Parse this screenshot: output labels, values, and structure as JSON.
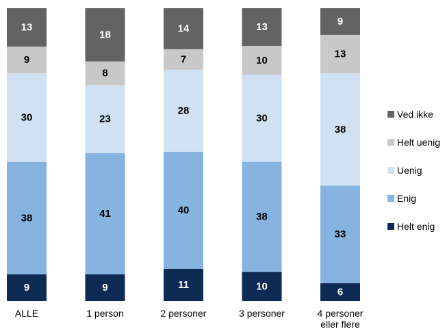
{
  "chart_data": {
    "type": "bar",
    "stacked": true,
    "orientation": "vertical",
    "percent_scale": 100,
    "categories": [
      "ALLE",
      "1 person",
      "2 personer",
      "3 personer",
      "4 personer\neller flere"
    ],
    "series": [
      {
        "name": "Helt enig",
        "color": "#0d2b55",
        "label_color": "#ffffff",
        "values": [
          9,
          9,
          11,
          10,
          6
        ]
      },
      {
        "name": "Enig",
        "color": "#86b3df",
        "label_color": "#000000",
        "values": [
          38,
          41,
          40,
          38,
          33
        ]
      },
      {
        "name": "Uenig",
        "color": "#cfe1f3",
        "label_color": "#000000",
        "values": [
          30,
          23,
          28,
          30,
          38
        ]
      },
      {
        "name": "Helt uenig",
        "color": "#c8c8c8",
        "label_color": "#000000",
        "values": [
          9,
          8,
          7,
          10,
          13
        ]
      },
      {
        "name": "Ved ikke",
        "color": "#636363",
        "label_color": "#ffffff",
        "values": [
          13,
          18,
          14,
          13,
          9
        ]
      }
    ],
    "legend": {
      "position": "right",
      "order": [
        "Ved ikke",
        "Helt uenig",
        "Uenig",
        "Enig",
        "Helt enig"
      ]
    },
    "grid": false,
    "title": "",
    "xlabel": "",
    "ylabel": ""
  }
}
